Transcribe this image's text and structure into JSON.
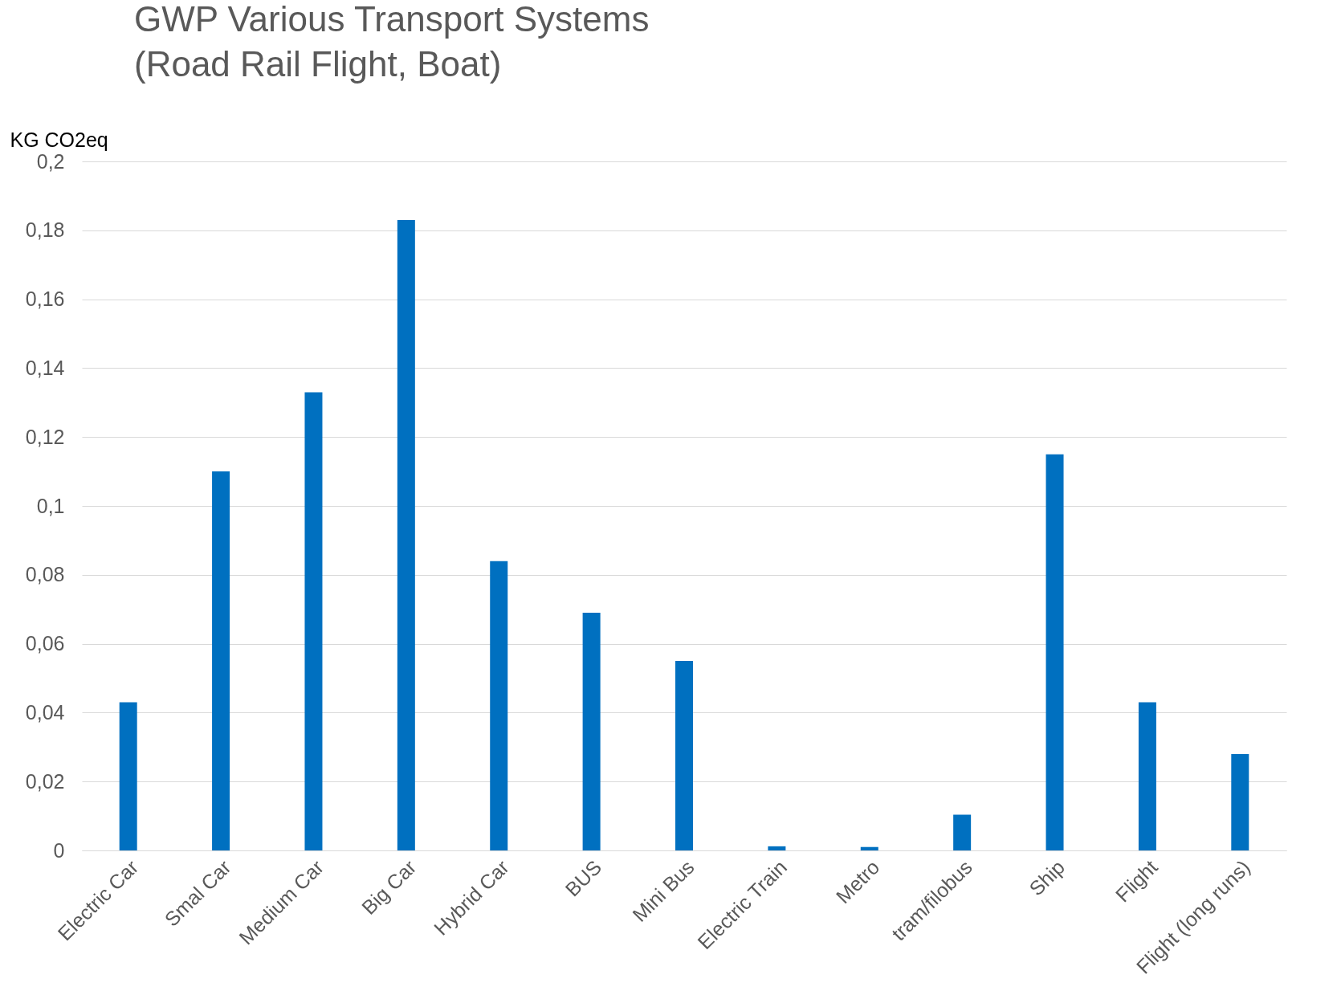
{
  "chart_data": {
    "type": "bar",
    "title": "GWP Various Transport Systems\n(Road Rail Flight, Boat)",
    "ylabel": "KG CO2eq",
    "categories": [
      "Electric Car",
      "Smal Car",
      "Medium Car",
      "Big Car",
      "Hybrid Car",
      "BUS",
      "Mini Bus",
      "Electric Train",
      "Metro",
      "tram/filobus",
      "Ship",
      "Flight",
      "Flight (long runs)"
    ],
    "values": [
      0.043,
      0.11,
      0.133,
      0.183,
      0.084,
      0.069,
      0.055,
      0.0012,
      0.001,
      0.0104,
      0.115,
      0.043,
      0.028
    ],
    "color": "#0070c0",
    "ylim": [
      0,
      0.2
    ],
    "yticks": [
      0,
      {
        "value": 0.02,
        "label": "0,02"
      },
      {
        "value": 0.04,
        "label": "0,04"
      },
      {
        "value": 0.06,
        "label": "0,06"
      },
      {
        "value": 0.08,
        "label": "0,08"
      },
      {
        "value": 0.1,
        "label": "0,1"
      },
      {
        "value": 0.12,
        "label": "0,12"
      },
      {
        "value": 0.14,
        "label": "0,14"
      },
      {
        "value": 0.16,
        "label": "0,16"
      },
      {
        "value": 0.18,
        "label": "0,18"
      },
      {
        "value": 0.2,
        "label": "0,2"
      }
    ],
    "grid": true
  }
}
